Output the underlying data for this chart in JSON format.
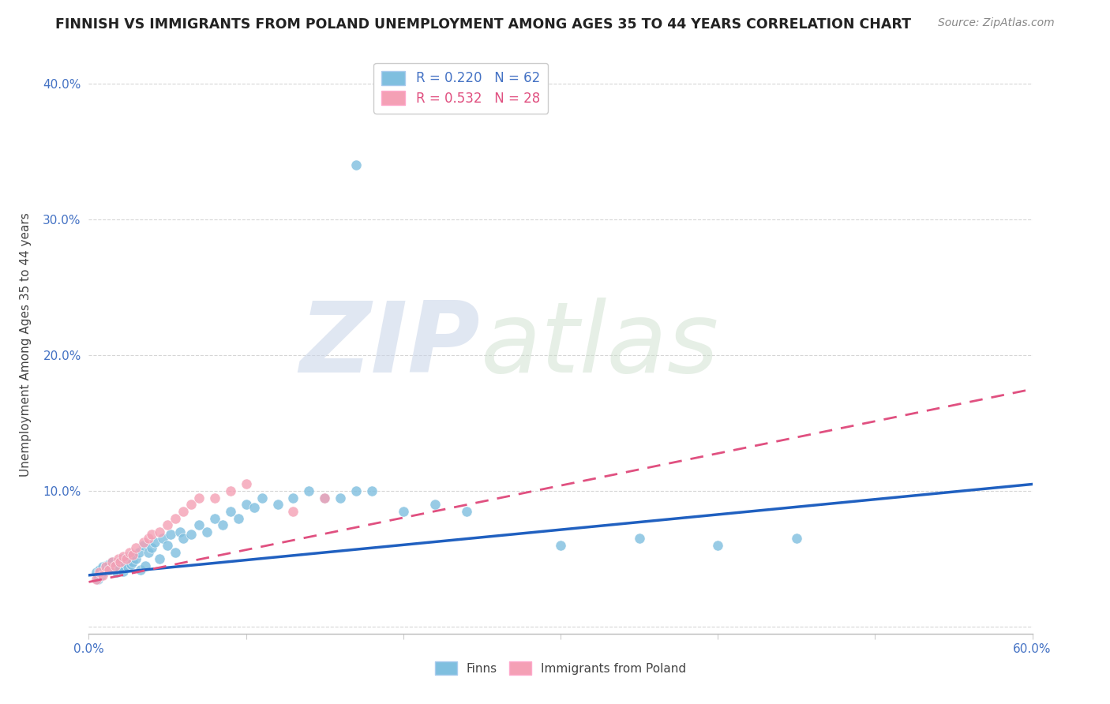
{
  "title": "FINNISH VS IMMIGRANTS FROM POLAND UNEMPLOYMENT AMONG AGES 35 TO 44 YEARS CORRELATION CHART",
  "source_text": "Source: ZipAtlas.com",
  "ylabel": "Unemployment Among Ages 35 to 44 years",
  "xlim": [
    0.0,
    0.6
  ],
  "ylim": [
    -0.005,
    0.42
  ],
  "r_finn": 0.22,
  "n_finn": 62,
  "r_poland": 0.532,
  "n_poland": 28,
  "finn_color": "#7fbfdf",
  "poland_color": "#f4a0b5",
  "finn_line_color": "#2060c0",
  "poland_line_color": "#e05080",
  "background_color": "#ffffff",
  "finn_x": [
    0.005,
    0.006,
    0.007,
    0.008,
    0.009,
    0.01,
    0.011,
    0.012,
    0.013,
    0.014,
    0.015,
    0.016,
    0.018,
    0.019,
    0.02,
    0.021,
    0.022,
    0.023,
    0.025,
    0.026,
    0.027,
    0.028,
    0.03,
    0.032,
    0.033,
    0.035,
    0.036,
    0.038,
    0.04,
    0.042,
    0.045,
    0.047,
    0.05,
    0.052,
    0.055,
    0.058,
    0.06,
    0.065,
    0.07,
    0.075,
    0.08,
    0.085,
    0.09,
    0.095,
    0.1,
    0.105,
    0.11,
    0.12,
    0.13,
    0.14,
    0.15,
    0.16,
    0.17,
    0.18,
    0.2,
    0.22,
    0.24,
    0.3,
    0.35,
    0.4,
    0.45,
    0.17
  ],
  "finn_y": [
    0.04,
    0.035,
    0.042,
    0.038,
    0.044,
    0.041,
    0.045,
    0.043,
    0.046,
    0.042,
    0.048,
    0.044,
    0.04,
    0.046,
    0.043,
    0.05,
    0.041,
    0.047,
    0.044,
    0.052,
    0.046,
    0.048,
    0.05,
    0.055,
    0.042,
    0.06,
    0.045,
    0.055,
    0.058,
    0.062,
    0.05,
    0.065,
    0.06,
    0.068,
    0.055,
    0.07,
    0.065,
    0.068,
    0.075,
    0.07,
    0.08,
    0.075,
    0.085,
    0.08,
    0.09,
    0.088,
    0.095,
    0.09,
    0.095,
    0.1,
    0.095,
    0.095,
    0.1,
    0.1,
    0.085,
    0.09,
    0.085,
    0.06,
    0.065,
    0.06,
    0.065,
    0.34
  ],
  "poland_x": [
    0.005,
    0.007,
    0.009,
    0.011,
    0.013,
    0.015,
    0.017,
    0.019,
    0.02,
    0.022,
    0.024,
    0.026,
    0.028,
    0.03,
    0.035,
    0.038,
    0.04,
    0.045,
    0.05,
    0.055,
    0.06,
    0.065,
    0.07,
    0.08,
    0.09,
    0.1,
    0.13,
    0.15
  ],
  "poland_y": [
    0.035,
    0.04,
    0.038,
    0.044,
    0.042,
    0.048,
    0.045,
    0.05,
    0.048,
    0.052,
    0.05,
    0.055,
    0.053,
    0.058,
    0.062,
    0.065,
    0.068,
    0.07,
    0.075,
    0.08,
    0.085,
    0.09,
    0.095,
    0.095,
    0.1,
    0.105,
    0.085,
    0.095
  ],
  "finn_line_x0": 0.0,
  "finn_line_x1": 0.6,
  "finn_line_y0": 0.038,
  "finn_line_y1": 0.105,
  "poland_line_x0": 0.0,
  "poland_line_x1": 0.6,
  "poland_line_y0": 0.033,
  "poland_line_y1": 0.175
}
